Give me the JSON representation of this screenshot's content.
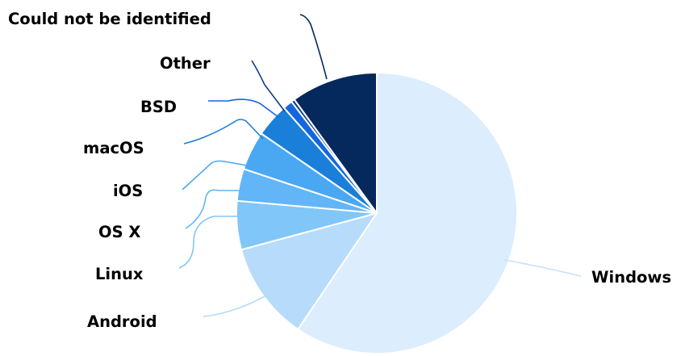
{
  "chart_data": {
    "type": "pie",
    "title": "",
    "slices": [
      {
        "label": "Windows",
        "value": 59.5,
        "color": "#dcedfd"
      },
      {
        "label": "Android",
        "value": 11.3,
        "color": "#b7dbfb"
      },
      {
        "label": "Linux",
        "value": 5.6,
        "color": "#80c6f8"
      },
      {
        "label": "OS X",
        "value": 3.7,
        "color": "#62b5f6"
      },
      {
        "label": "iOS",
        "value": 4.5,
        "color": "#4aa8f3"
      },
      {
        "label": "macOS",
        "value": 3.9,
        "color": "#1a7fd9"
      },
      {
        "label": "BSD",
        "value": 1.1,
        "color": "#1565e0"
      },
      {
        "label": "Other",
        "value": 0.4,
        "color": "#0d3d86"
      },
      {
        "label": "Could not be identified",
        "value": 10.0,
        "color": "#05295c"
      }
    ],
    "legend": "none"
  }
}
